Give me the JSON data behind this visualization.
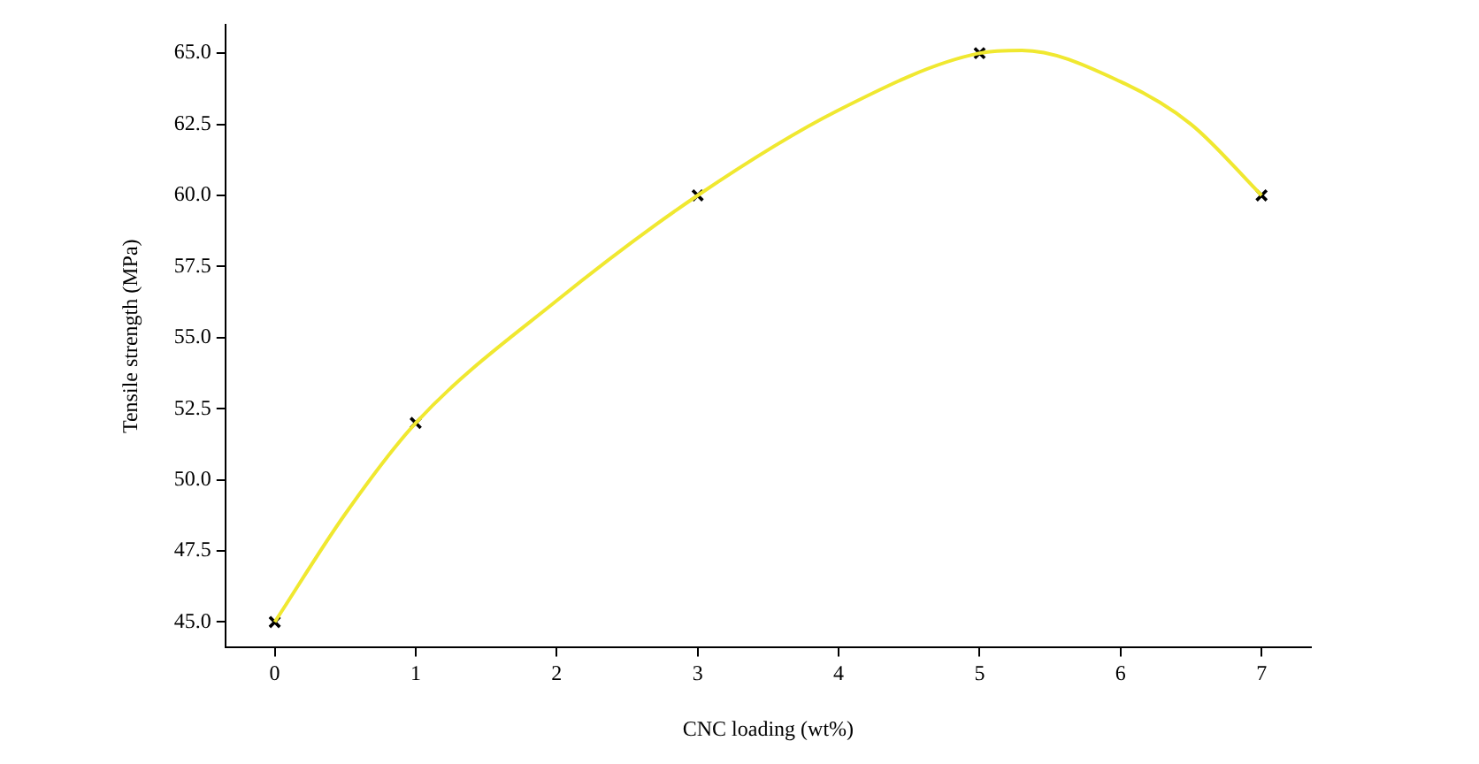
{
  "chart_data": {
    "type": "line",
    "xlabel": "CNC loading (wt%)",
    "ylabel": "Tensile strength (MPa)",
    "xlim": [
      -0.35,
      7.35
    ],
    "xticks": [
      0,
      1,
      2,
      3,
      4,
      5,
      6,
      7
    ],
    "ylim": [
      44.1,
      66
    ],
    "yticks": [
      {
        "value": 45,
        "label": "45.0"
      },
      {
        "value": 47.5,
        "label": "47.5"
      },
      {
        "value": 50,
        "label": "50.0"
      },
      {
        "value": 52.5,
        "label": "52.5"
      },
      {
        "value": 55,
        "label": "55.0"
      },
      {
        "value": 57.5,
        "label": "57.5"
      },
      {
        "value": 60,
        "label": "60.0"
      },
      {
        "value": 62.5,
        "label": "62.5"
      },
      {
        "value": 65,
        "label": "65.0"
      }
    ],
    "grid": false,
    "legend": false,
    "series": [
      {
        "type": "line",
        "color": "#f0e830",
        "marker": "none",
        "x": [
          0,
          0.5,
          1,
          2,
          3,
          4,
          5,
          5.3,
          6,
          6.5,
          7
        ],
        "values": [
          45,
          48.8,
          52,
          56.3,
          60,
          63,
          65,
          65.1,
          64,
          62.5,
          60
        ]
      },
      {
        "type": "scatter",
        "color": "#000000",
        "marker": "cross",
        "x": [
          0,
          1,
          3,
          5,
          7
        ],
        "values": [
          45,
          52,
          60,
          65,
          60
        ]
      }
    ]
  }
}
